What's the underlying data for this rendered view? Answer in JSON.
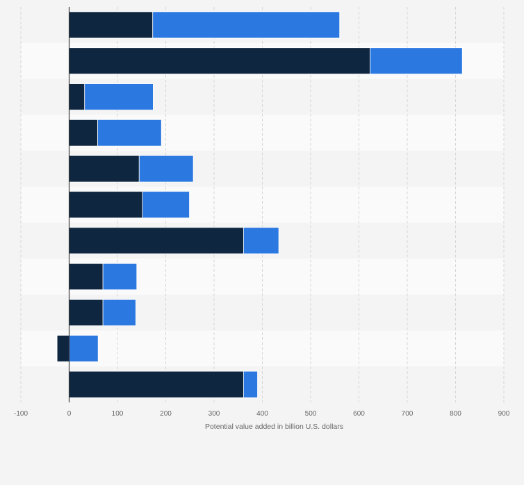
{
  "chart_data": {
    "type": "bar",
    "orientation": "horizontal",
    "stacked": true,
    "title": "",
    "xlabel": "Potential value added in billion U.S. dollars",
    "ylabel": "",
    "xlim": [
      -100,
      900
    ],
    "xticks": [
      -100,
      0,
      100,
      200,
      300,
      400,
      500,
      600,
      700,
      800,
      900
    ],
    "tick_labels": [
      "-100",
      "0",
      "100",
      "200",
      "300",
      "400",
      "500",
      "600",
      "700",
      "800",
      "900"
    ],
    "categories": [
      "",
      "",
      "",
      "",
      "",
      "",
      "",
      "",
      "",
      "",
      ""
    ],
    "series": [
      {
        "name": "",
        "color": "#0f2640",
        "values": [
          173,
          623,
          32,
          59,
          145,
          152,
          361,
          70,
          70,
          -25,
          361
        ]
      },
      {
        "name": "",
        "color": "#2b78e0",
        "values": [
          387,
          191,
          142,
          132,
          112,
          97,
          73,
          70,
          68,
          60,
          29
        ]
      }
    ],
    "grid": true,
    "legend": "none"
  }
}
